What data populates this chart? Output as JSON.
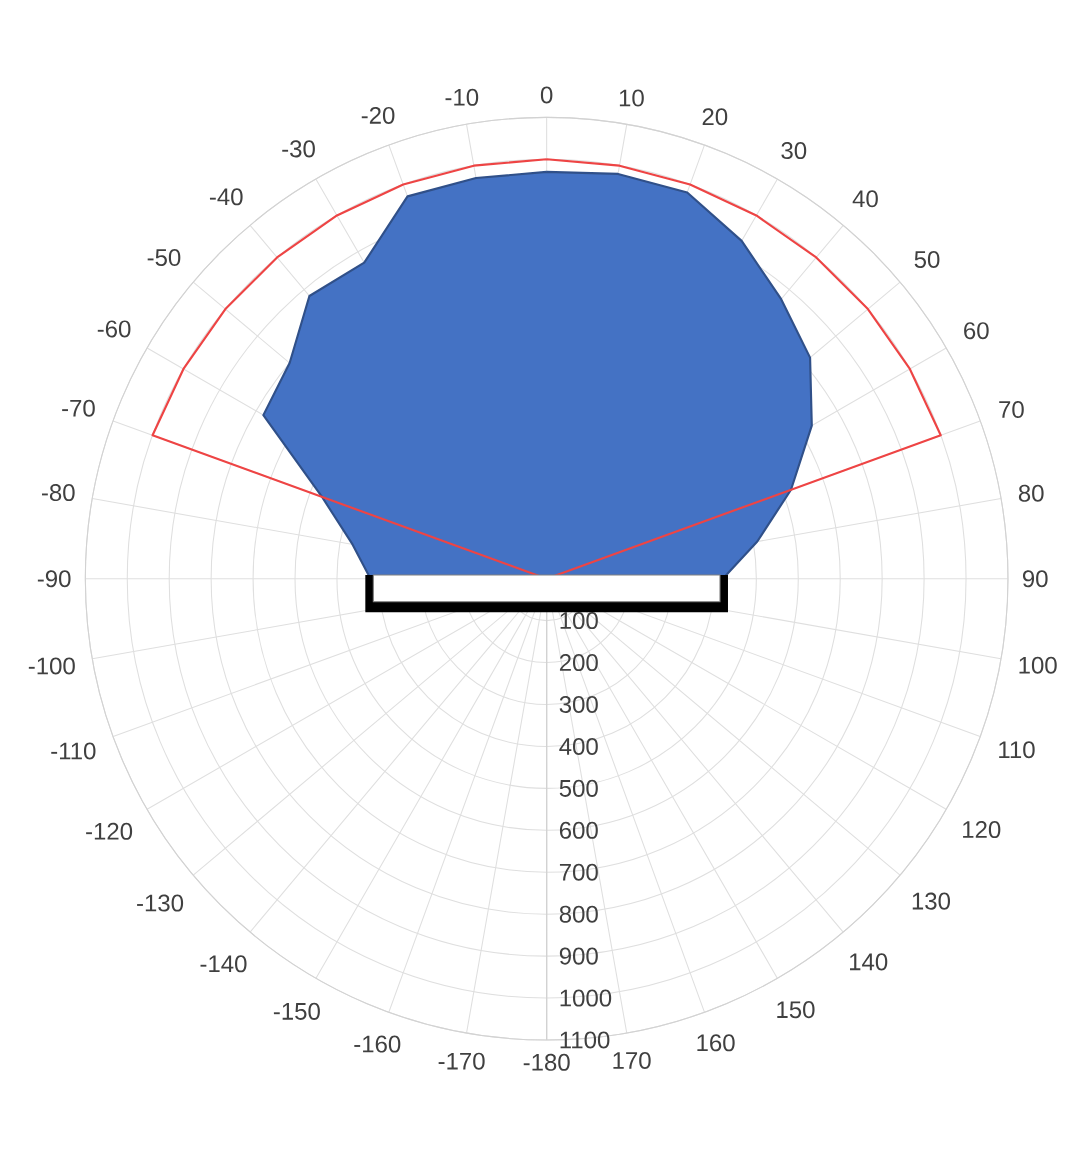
{
  "chart_data": {
    "type": "radar",
    "categories": [
      "0",
      "10",
      "20",
      "30",
      "40",
      "50",
      "60",
      "70",
      "80",
      "90",
      "100",
      "110",
      "120",
      "130",
      "140",
      "150",
      "160",
      "170",
      "-180",
      "-170",
      "-160",
      "-150",
      "-140",
      "-130",
      "-120",
      "-110",
      "-100",
      "-90",
      "-80",
      "-70",
      "-60",
      "-50",
      "-40",
      "-30",
      "-20",
      "-10"
    ],
    "series": [
      {
        "type": "area",
        "color": "#4472c4",
        "values": [
          970,
          980,
          980,
          930,
          870,
          820,
          730,
          620,
          510,
          420,
          null,
          null,
          null,
          null,
          null,
          null,
          null,
          null,
          null,
          null,
          null,
          null,
          null,
          null,
          null,
          null,
          null,
          420,
          470,
          570,
          780,
          800,
          880,
          870,
          970,
          970
        ]
      },
      {
        "color": "#ee4444",
        "values": [
          1000,
          1000,
          1000,
          1000,
          1000,
          1000,
          1000,
          1000,
          0,
          0,
          0,
          0,
          0,
          0,
          0,
          0,
          0,
          0,
          0,
          0,
          0,
          0,
          0,
          0,
          0,
          0,
          0,
          0,
          0,
          1000,
          1000,
          1000,
          1000,
          1000,
          1000,
          1000
        ]
      }
    ],
    "ylim": [
      0,
      1100
    ],
    "yticks": [
      100,
      200,
      300,
      400,
      500,
      600,
      700,
      800,
      900,
      1000,
      1100
    ],
    "grid": true,
    "marker": "none"
  }
}
